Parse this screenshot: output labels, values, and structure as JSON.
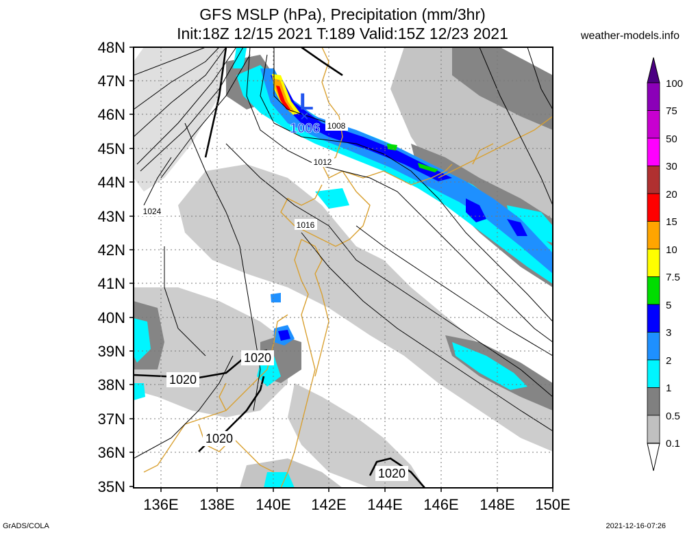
{
  "title": {
    "line1": "GFS MSLP (hPa), Precipitation (mm/3hr)",
    "line2": "Init:18Z 12/15 2021 T:189 Valid:15Z 12/23 2021"
  },
  "site": "weather-models.info",
  "footer": {
    "left": "GrADS/COLA",
    "right": "2021-12-16-07:26"
  },
  "axes": {
    "lat_labels": [
      "48N",
      "47N",
      "46N",
      "45N",
      "44N",
      "43N",
      "42N",
      "41N",
      "40N",
      "39N",
      "38N",
      "37N",
      "36N",
      "35N"
    ],
    "lon_labels": [
      "136E",
      "138E",
      "140E",
      "142E",
      "144E",
      "146E",
      "148E",
      "150E"
    ]
  },
  "colorbar": {
    "labels": [
      "100",
      "75",
      "50",
      "30",
      "20",
      "15",
      "10",
      "7.5",
      "5",
      "3",
      "2",
      "1",
      "0.5",
      "0.1"
    ],
    "colors": [
      "#4b0082",
      "#8b00b8",
      "#c800d0",
      "#ff00ff",
      "#b03030",
      "#ff0000",
      "#ffa500",
      "#ffff00",
      "#00dd00",
      "#0000ff",
      "#1e90ff",
      "#00f5ff",
      "#808080",
      "#c0c0c0",
      "#ffffff"
    ]
  },
  "low_center": {
    "symbol": "L",
    "marker": "×",
    "pressure": "1006"
  },
  "isobar_labels": {
    "l1008": "1008",
    "l1012": "1012",
    "l1016": "1016",
    "l1024": "1024",
    "l1020a": "1020",
    "l1020b": "1020",
    "l1020c": "1020",
    "l1020d": "1020"
  }
}
